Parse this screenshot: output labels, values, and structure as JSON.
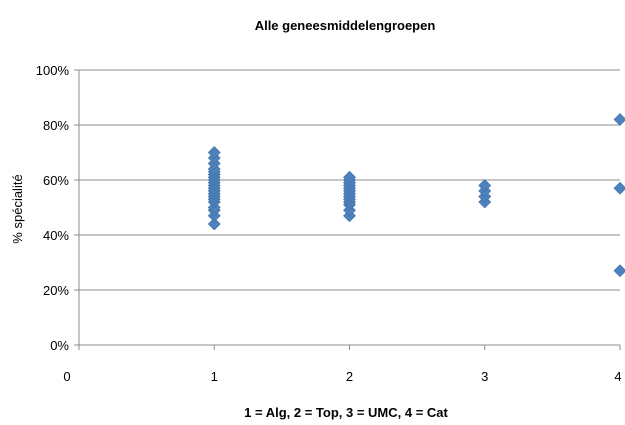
{
  "chart_data": {
    "type": "scatter",
    "title": "Alle geneesmiddelengroepen",
    "xlabel": "1 = Alg, 2 = Top, 3 = UMC, 4 = Cat",
    "ylabel": "% spécialité",
    "xlim": [
      0,
      4
    ],
    "ylim": [
      0,
      100
    ],
    "x_ticks": [
      "0",
      "1",
      "2",
      "3",
      "4"
    ],
    "y_ticks": [
      "0%",
      "20%",
      "40%",
      "60%",
      "80%",
      "100%"
    ],
    "grid": "horizontal",
    "legend": "none",
    "marker": "diamond",
    "color": "#4F81BD",
    "series": [
      {
        "points": [
          {
            "x": 1,
            "y": 44
          },
          {
            "x": 1,
            "y": 47
          },
          {
            "x": 1,
            "y": 49
          },
          {
            "x": 1,
            "y": 50
          },
          {
            "x": 1,
            "y": 52
          },
          {
            "x": 1,
            "y": 53
          },
          {
            "x": 1,
            "y": 54
          },
          {
            "x": 1,
            "y": 55
          },
          {
            "x": 1,
            "y": 56
          },
          {
            "x": 1,
            "y": 57
          },
          {
            "x": 1,
            "y": 58
          },
          {
            "x": 1,
            "y": 59
          },
          {
            "x": 1,
            "y": 60
          },
          {
            "x": 1,
            "y": 61
          },
          {
            "x": 1,
            "y": 62
          },
          {
            "x": 1,
            "y": 63
          },
          {
            "x": 1,
            "y": 64
          },
          {
            "x": 1,
            "y": 66
          },
          {
            "x": 1,
            "y": 68
          },
          {
            "x": 1,
            "y": 70
          },
          {
            "x": 2,
            "y": 47
          },
          {
            "x": 2,
            "y": 49
          },
          {
            "x": 2,
            "y": 51
          },
          {
            "x": 2,
            "y": 52
          },
          {
            "x": 2,
            "y": 53
          },
          {
            "x": 2,
            "y": 54
          },
          {
            "x": 2,
            "y": 55
          },
          {
            "x": 2,
            "y": 56
          },
          {
            "x": 2,
            "y": 57
          },
          {
            "x": 2,
            "y": 58
          },
          {
            "x": 2,
            "y": 59
          },
          {
            "x": 2,
            "y": 60
          },
          {
            "x": 2,
            "y": 61
          },
          {
            "x": 3,
            "y": 52
          },
          {
            "x": 3,
            "y": 54
          },
          {
            "x": 3,
            "y": 56
          },
          {
            "x": 3,
            "y": 58
          },
          {
            "x": 4,
            "y": 27
          },
          {
            "x": 4,
            "y": 57
          },
          {
            "x": 4,
            "y": 82
          }
        ]
      }
    ]
  }
}
